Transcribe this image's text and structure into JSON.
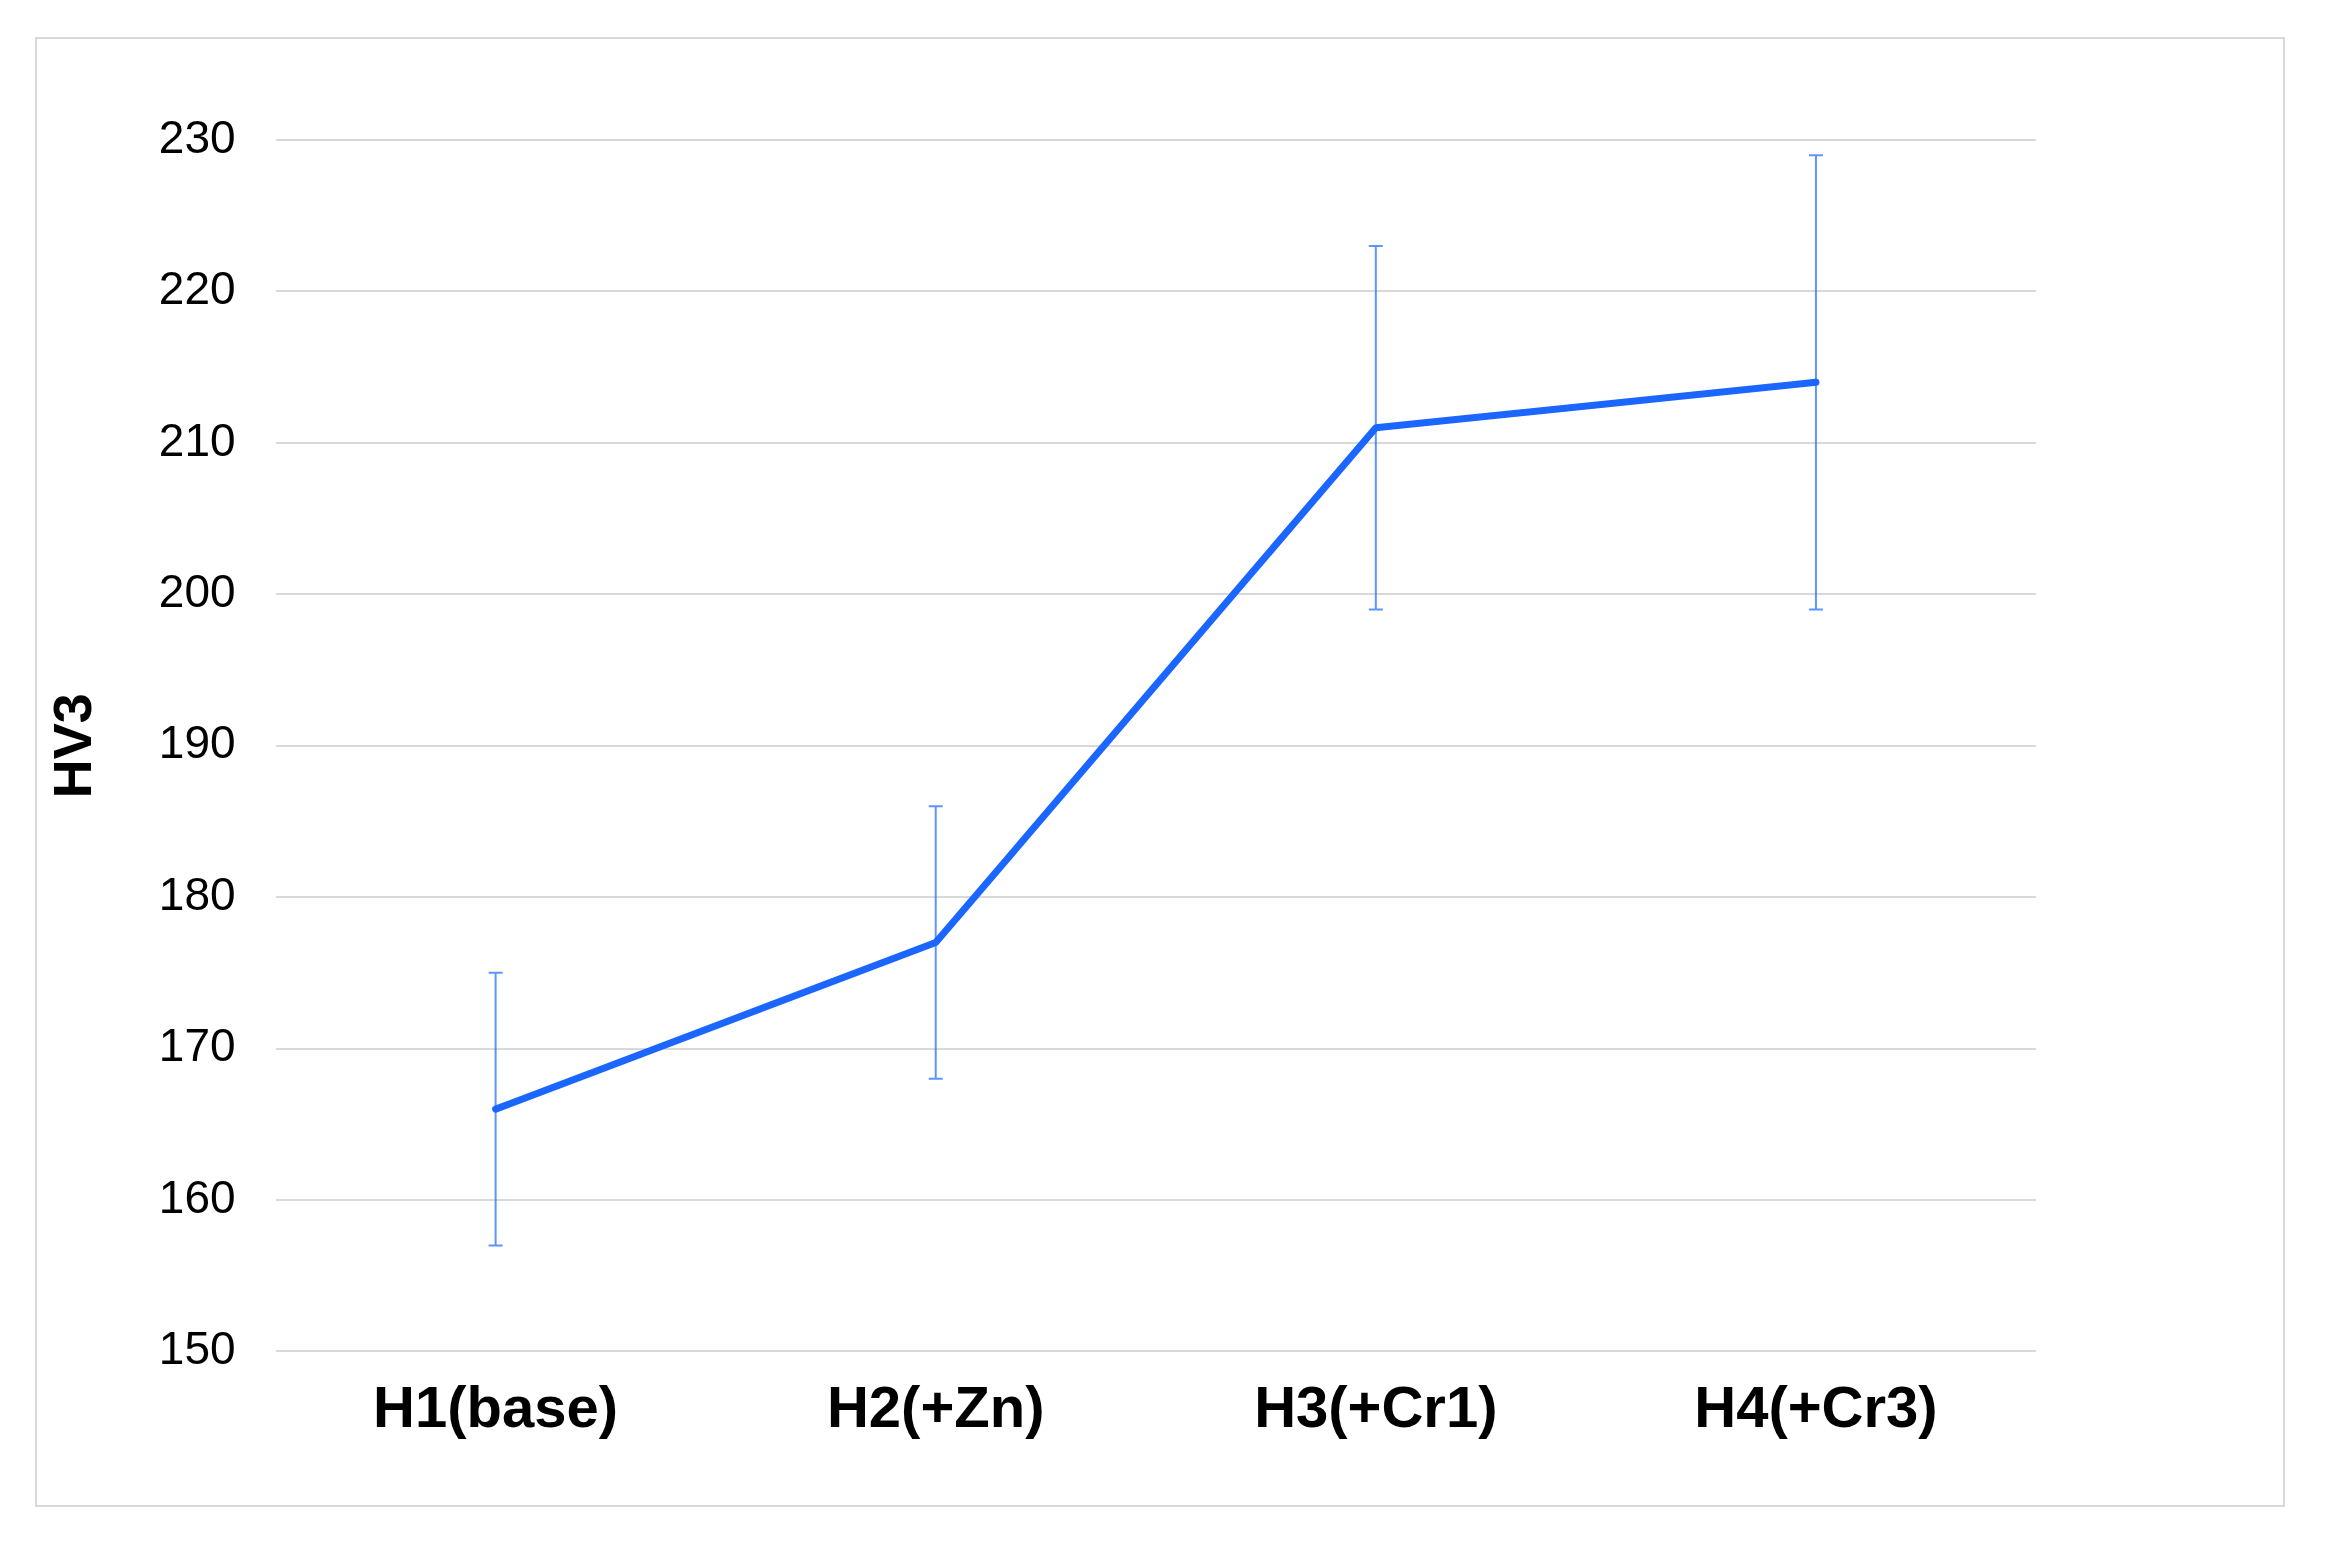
{
  "chart_data": {
    "type": "line",
    "ylabel": "HV3",
    "categories": [
      "H1(base)",
      "H2(+Zn)",
      "H3(+Cr1)",
      "H4(+Cr3)"
    ],
    "series": [
      {
        "color": "#1a66ff",
        "values": [
          166,
          177,
          211,
          214
        ],
        "errors": [
          9,
          9,
          12,
          15
        ]
      }
    ],
    "ylim": [
      150,
      230
    ],
    "yticks": [
      150,
      160,
      170,
      180,
      190,
      200,
      210,
      220,
      230
    ],
    "grid": "y",
    "marker": "none",
    "line_style": "solid"
  }
}
